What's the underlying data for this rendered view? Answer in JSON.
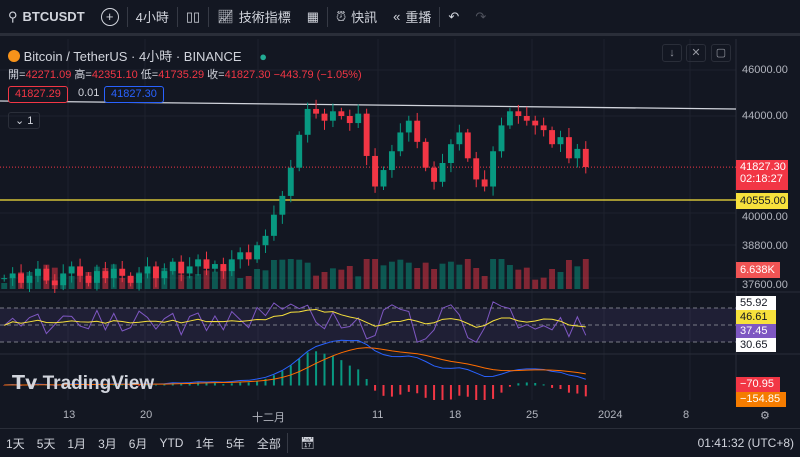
{
  "toolbar": {
    "symbol": "BTCUSDT",
    "interval": "4小時",
    "indicators": "技術指標",
    "alert": "快訊",
    "replay": "重播"
  },
  "legend": {
    "title": "Bitcoin / TetherUS · 4小時 · BINANCE",
    "open_label": "開=",
    "open": "42271.09",
    "high_label": "高=",
    "high": "42351.10",
    "low_label": "低=",
    "low": "41735.29",
    "close_label": "收=",
    "close": "41827.30",
    "change": "−443.79 (−1.05%)",
    "sell": "41827.29",
    "spread": "0.01",
    "buy": "41827.30",
    "collapse": "1"
  },
  "price_axis": [
    "46000.00",
    "44000.00",
    "40000.00",
    "38800.00",
    "37600.00"
  ],
  "tags": {
    "last": "41827.30",
    "countdown": "02:18:27",
    "hline": "40555.00",
    "volume": "6.638K",
    "rsi_top": "55.92",
    "rsi_ma": "46.61",
    "rsi": "37.45",
    "rsi_low": "30.65",
    "macd1": "−70.95",
    "macd2": "−154.85"
  },
  "time_axis": [
    "13",
    "20",
    "十二月",
    "11",
    "18",
    "25",
    "2024",
    "8"
  ],
  "ranges": [
    "1天",
    "5天",
    "1月",
    "3月",
    "6月",
    "YTD",
    "1年",
    "5年",
    "全部"
  ],
  "clock": "01:41:32 (UTC+8)",
  "watermark": "TradingView",
  "colors": {
    "up": "#089981",
    "down": "#f23645",
    "bg": "#131722",
    "hline": "#f7e13c",
    "rsi": "#7e57c2"
  },
  "chart_data": {
    "type": "candlestick",
    "closes": [
      37100,
      37300,
      36900,
      37200,
      37500,
      37000,
      36800,
      37300,
      37600,
      37200,
      36900,
      37400,
      37100,
      37500,
      37200,
      36900,
      37300,
      37600,
      37100,
      37400,
      37800,
      37300,
      37600,
      37900,
      37500,
      37700,
      37400,
      37900,
      38200,
      37900,
      38500,
      38900,
      39800,
      40600,
      41800,
      43200,
      44300,
      44100,
      43800,
      44200,
      44000,
      43700,
      44100,
      42300,
      41000,
      41700,
      42500,
      43300,
      43800,
      42900,
      41800,
      41200,
      42000,
      42800,
      43300,
      42200,
      41300,
      41000,
      42500,
      43600,
      44200,
      44000,
      43800,
      43600,
      43400,
      42800,
      43100,
      42200,
      42600,
      41827
    ],
    "resistance": [
      44600,
      44300
    ],
    "support": 40555
  }
}
